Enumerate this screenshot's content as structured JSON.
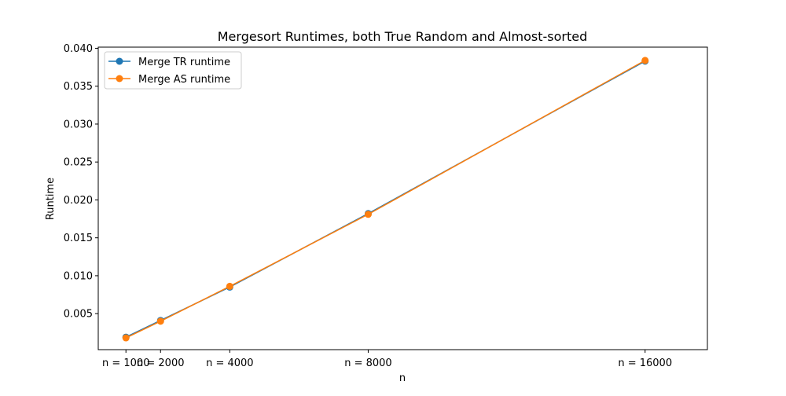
{
  "chart_data": {
    "type": "line",
    "title": "Mergesort Runtimes, both True Random and Almost-sorted",
    "xlabel": "n",
    "ylabel": "Runtime",
    "x": [
      1000,
      2000,
      4000,
      8000,
      16000
    ],
    "x_tick_labels": [
      "n = 1000",
      "n = 2000",
      "n = 4000",
      "n = 8000",
      "n = 16000"
    ],
    "y_ticks": [
      0.005,
      0.01,
      0.015,
      0.02,
      0.025,
      0.03,
      0.035,
      0.04
    ],
    "y_tick_labels": [
      "0.005",
      "0.010",
      "0.015",
      "0.020",
      "0.025",
      "0.030",
      "0.035",
      "0.040"
    ],
    "xlim": [
      200,
      17800
    ],
    "ylim": [
      0.00025,
      0.04015
    ],
    "grid": false,
    "legend_position": "upper-left",
    "series": [
      {
        "name": "Merge TR runtime",
        "color": "#1f77b4",
        "marker": "circle",
        "values": [
          0.0019,
          0.0041,
          0.0085,
          0.0182,
          0.0383
        ]
      },
      {
        "name": "Merge AS runtime",
        "color": "#ff7f0e",
        "marker": "circle",
        "values": [
          0.0018,
          0.004,
          0.0086,
          0.0181,
          0.0384
        ]
      }
    ]
  }
}
